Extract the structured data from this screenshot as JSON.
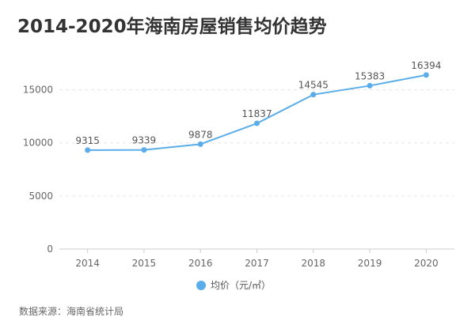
{
  "chart_data": {
    "type": "line",
    "title": "2014-2020年海南房屋销售均价趋势",
    "categories": [
      "2014",
      "2015",
      "2016",
      "2017",
      "2018",
      "2019",
      "2020"
    ],
    "series": [
      {
        "name": "均价（元/㎡）",
        "values": [
          9315,
          9339,
          9878,
          11837,
          14545,
          15383,
          16394
        ]
      }
    ],
    "y_ticks": [
      "0",
      "5000",
      "10000",
      "15000"
    ],
    "ylim": [
      0,
      17500
    ],
    "legend_position": "bottom-center",
    "grid": "horizontal-dashed",
    "line_color": "#5aade8"
  },
  "source_note": "数据来源：海南省统计局"
}
